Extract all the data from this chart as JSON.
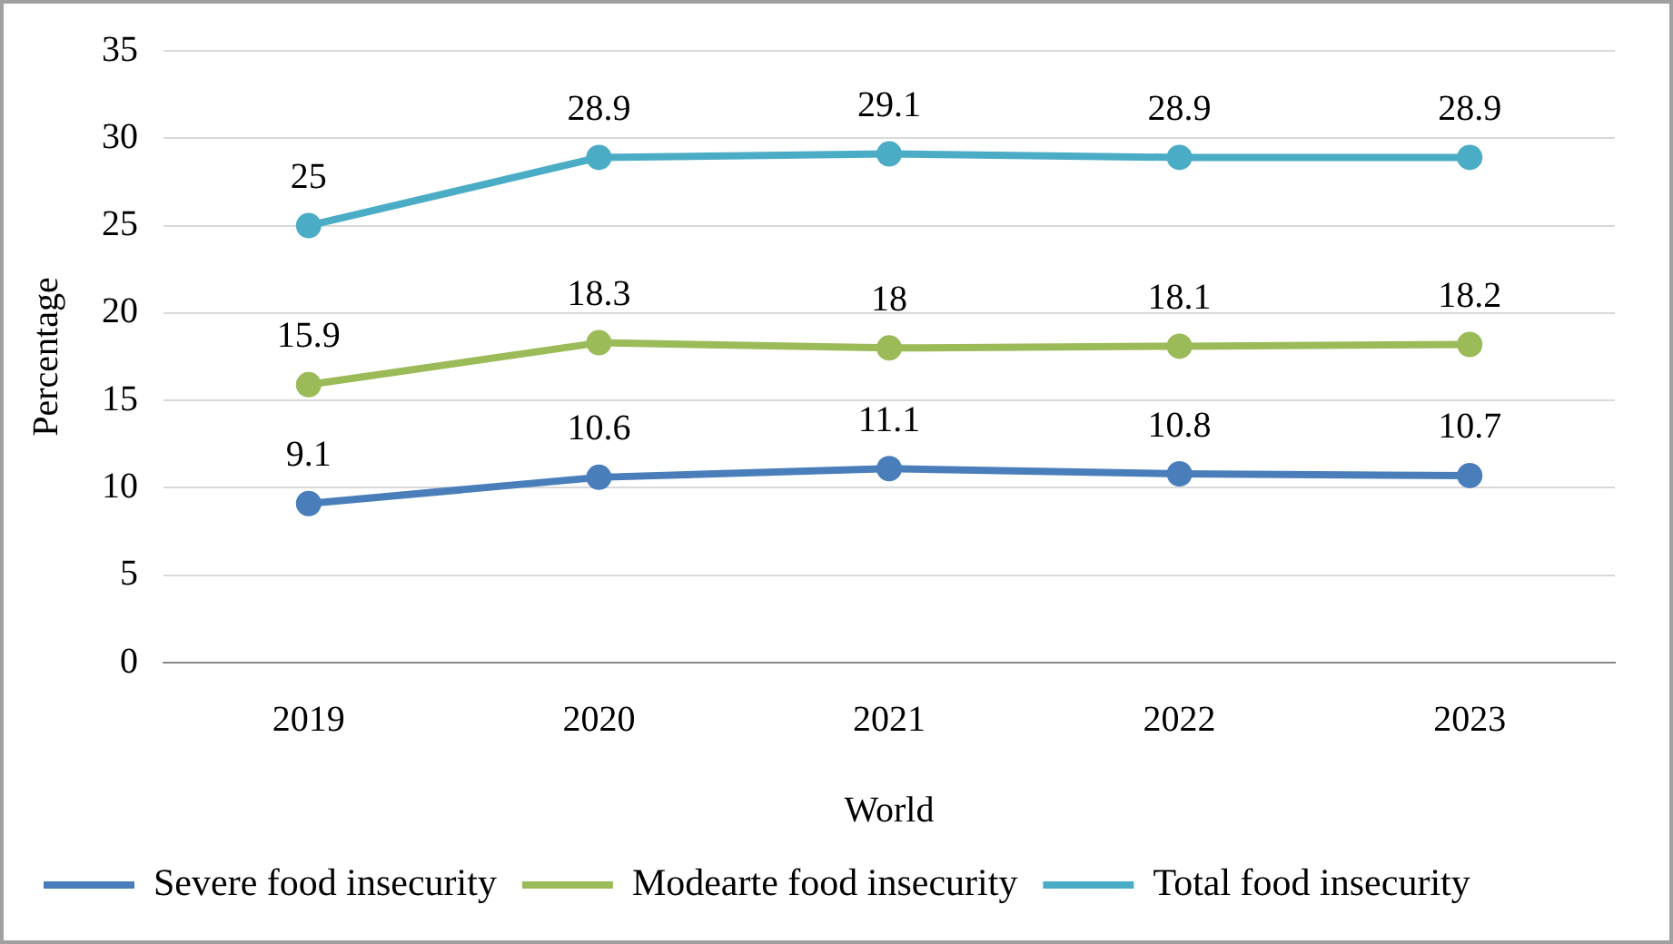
{
  "chart_data": {
    "type": "line",
    "xlabel": "World",
    "ylabel": "Percentage",
    "categories": [
      "2019",
      "2020",
      "2021",
      "2022",
      "2023"
    ],
    "series": [
      {
        "name": "Severe food insecurity",
        "color": "#4a7ebb",
        "values": [
          9.1,
          10.6,
          11.1,
          10.8,
          10.7
        ]
      },
      {
        "name": "Modearte food insecurity",
        "color": "#9bbb59",
        "values": [
          15.9,
          18.3,
          18,
          18.1,
          18.2
        ]
      },
      {
        "name": "Total food insecurity",
        "color": "#4bacc6",
        "values": [
          25,
          28.9,
          29.1,
          28.9,
          28.9
        ]
      }
    ],
    "ylim": [
      0,
      35
    ],
    "yticks": [
      0,
      5,
      10,
      15,
      20,
      25,
      30,
      35
    ],
    "grid": "y",
    "legend": "bottom",
    "marker": "circle",
    "line_style": "solid",
    "data_labels": true
  }
}
